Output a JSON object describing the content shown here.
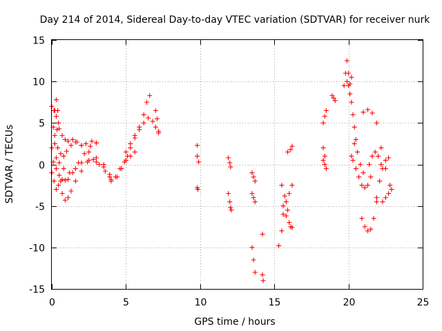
{
  "chart_data": {
    "type": "scatter",
    "title": "Day 214 of 2014, Sidereal Day-to-day VTEC variation (SDTVAR) for receiver nurk",
    "xlabel": "GPS time / hours",
    "ylabel": "SDTVAR / TECUs",
    "xlim": [
      0,
      25
    ],
    "ylim": [
      -15,
      15
    ],
    "xticks": [
      0,
      5,
      10,
      15,
      20,
      25
    ],
    "yticks": [
      -15,
      -10,
      -5,
      0,
      5,
      10,
      15
    ],
    "grid": true,
    "marker": "plus",
    "color": "#ff0000",
    "series": [
      {
        "name": "s01",
        "x": [
          0.0,
          0.15,
          0.3,
          0.45
        ],
        "y": [
          7.0,
          6.5,
          5.8,
          5.0
        ]
      },
      {
        "name": "s02",
        "x": [
          0.1,
          0.2,
          0.3,
          0.4
        ],
        "y": [
          4.5,
          6.5,
          7.8,
          6.5
        ]
      },
      {
        "name": "s03",
        "x": [
          0.2,
          0.35,
          0.5,
          0.7,
          0.9,
          1.1,
          1.4,
          1.7,
          2.0,
          2.3,
          2.7,
          3.0
        ],
        "y": [
          3.5,
          4.2,
          4.3,
          3.5,
          3.0,
          2.8,
          3.0,
          2.7,
          2.3,
          2.5,
          2.8,
          2.6
        ]
      },
      {
        "name": "s04",
        "x": [
          0.0,
          0.2,
          0.4,
          0.6,
          0.8,
          1.0,
          1.3,
          1.6,
          2.0,
          2.5,
          3.0,
          3.5,
          4.0
        ],
        "y": [
          2.0,
          2.5,
          2.0,
          1.3,
          1.0,
          1.6,
          2.3,
          2.7,
          2.3,
          1.5,
          0.8,
          0.0,
          -1.8
        ]
      },
      {
        "name": "s05",
        "x": [
          0.1,
          0.3,
          0.5,
          0.7,
          0.9,
          1.1,
          1.4,
          1.8,
          2.2,
          2.6,
          3.0
        ],
        "y": [
          0.3,
          -0.5,
          -1.3,
          -1.8,
          -1.9,
          -1.8,
          -1.0,
          0.2,
          1.3,
          2.2,
          2.6
        ]
      },
      {
        "name": "s06",
        "x": [
          0.0,
          0.15,
          0.3,
          0.45,
          0.6
        ],
        "y": [
          -1.0,
          -2.0,
          -3.0,
          -2.5,
          -2.0
        ]
      },
      {
        "name": "s07",
        "x": [
          0.7,
          0.9,
          1.1,
          1.3,
          1.6,
          2.0,
          2.4,
          2.8,
          3.2,
          3.6,
          3.9
        ],
        "y": [
          -3.5,
          -4.3,
          -4.0,
          -3.2,
          -2.0,
          -0.8,
          0.3,
          0.6,
          0.0,
          -0.8,
          -1.5
        ]
      },
      {
        "name": "s08",
        "x": [
          0.3,
          0.5,
          0.8,
          1.2,
          1.6,
          2.0,
          2.5,
          3.0,
          3.5,
          3.9
        ],
        "y": [
          0.8,
          0.2,
          -0.5,
          -1.0,
          -0.5,
          0.2,
          0.5,
          0.3,
          -0.3,
          -1.2
        ]
      },
      {
        "name": "s09",
        "x": [
          4.0,
          4.3,
          4.6,
          4.9,
          5.1
        ],
        "y": [
          -2.0,
          -1.5,
          -0.5,
          0.3,
          1.0
        ]
      },
      {
        "name": "s10",
        "x": [
          4.4,
          4.7,
          5.0,
          5.3,
          5.6
        ],
        "y": [
          -1.5,
          -0.5,
          0.5,
          1.0,
          1.5
        ]
      },
      {
        "name": "s11",
        "x": [
          5.0,
          5.3,
          5.6,
          5.9,
          6.2,
          6.4,
          6.6
        ],
        "y": [
          1.5,
          2.5,
          3.5,
          4.5,
          6.0,
          7.5,
          8.3
        ]
      },
      {
        "name": "s12",
        "x": [
          5.0,
          5.3,
          5.6,
          5.9,
          6.2,
          6.5,
          6.8,
          7.0,
          7.2
        ],
        "y": [
          0.5,
          2.0,
          3.2,
          4.2,
          5.0,
          5.6,
          5.2,
          4.5,
          3.8
        ]
      },
      {
        "name": "s13",
        "x": [
          7.0,
          7.1,
          7.2
        ],
        "y": [
          6.5,
          5.5,
          4.0
        ]
      },
      {
        "name": "s14",
        "x": [
          9.8,
          9.8,
          9.9
        ],
        "y": [
          2.3,
          1.0,
          0.3
        ]
      },
      {
        "name": "s15",
        "x": [
          9.8,
          9.85
        ],
        "y": [
          -2.8,
          -3.0
        ]
      },
      {
        "name": "s16",
        "x": [
          11.9,
          12.0,
          12.05
        ],
        "y": [
          0.8,
          0.2,
          -0.3
        ]
      },
      {
        "name": "s17",
        "x": [
          11.9,
          12.0,
          12.05,
          12.1
        ],
        "y": [
          -3.5,
          -4.5,
          -5.2,
          -5.5
        ]
      },
      {
        "name": "s18",
        "x": [
          13.5,
          13.6,
          13.7
        ],
        "y": [
          -1.0,
          -1.5,
          -2.0
        ]
      },
      {
        "name": "s19",
        "x": [
          13.5,
          13.6,
          13.7
        ],
        "y": [
          -3.5,
          -4.0,
          -4.5
        ]
      },
      {
        "name": "s20",
        "x": [
          13.5,
          13.6,
          13.7
        ],
        "y": [
          -10.0,
          -11.5,
          -13.0
        ]
      },
      {
        "name": "s21",
        "x": [
          14.2,
          14.2,
          14.25
        ],
        "y": [
          -8.4,
          -13.3,
          -14.0
        ]
      },
      {
        "name": "s22",
        "x": [
          15.3
        ],
        "y": [
          -9.8
        ]
      },
      {
        "name": "s23",
        "x": [
          15.5,
          15.7,
          15.9,
          16.1
        ],
        "y": [
          -2.5,
          -3.8,
          -5.5,
          -7.5
        ]
      },
      {
        "name": "s24",
        "x": [
          15.5,
          15.6,
          15.8,
          16.0,
          16.2
        ],
        "y": [
          -8.0,
          -6.0,
          -4.5,
          -3.5,
          -2.5
        ]
      },
      {
        "name": "s25",
        "x": [
          15.6,
          15.8,
          16.0,
          16.2
        ],
        "y": [
          -5.0,
          -6.2,
          -7.0,
          -7.6
        ]
      },
      {
        "name": "s26",
        "x": [
          15.9,
          16.1,
          16.2
        ],
        "y": [
          1.5,
          1.8,
          2.2
        ]
      },
      {
        "name": "s27",
        "x": [
          18.3,
          18.4,
          18.5
        ],
        "y": [
          5.0,
          5.8,
          6.5
        ]
      },
      {
        "name": "s28",
        "x": [
          18.3,
          18.4
        ],
        "y": [
          2.0,
          1.0
        ]
      },
      {
        "name": "s29",
        "x": [
          18.3,
          18.4,
          18.5
        ],
        "y": [
          0.5,
          0.0,
          -0.5
        ]
      },
      {
        "name": "s30",
        "x": [
          18.9,
          19.0,
          19.1
        ],
        "y": [
          8.3,
          8.0,
          7.7
        ]
      },
      {
        "name": "s31",
        "x": [
          19.7,
          19.8,
          19.9,
          20.0
        ],
        "y": [
          9.5,
          11.0,
          12.5,
          11.0
        ]
      },
      {
        "name": "s32",
        "x": [
          19.9,
          20.0,
          20.1,
          20.2
        ],
        "y": [
          10.0,
          9.5,
          9.7,
          10.5
        ]
      },
      {
        "name": "s33",
        "x": [
          20.1,
          20.2,
          20.3,
          20.4,
          20.5
        ],
        "y": [
          8.5,
          7.5,
          6.0,
          4.5,
          3.0
        ]
      },
      {
        "name": "s34",
        "x": [
          20.2,
          20.4,
          20.6,
          20.8,
          21.0
        ],
        "y": [
          1.0,
          2.5,
          1.5,
          0.0,
          -1.0
        ]
      },
      {
        "name": "s35",
        "x": [
          20.3,
          20.5,
          20.7,
          20.9,
          21.1,
          21.3,
          21.5
        ],
        "y": [
          0.5,
          -0.5,
          -1.5,
          -2.5,
          -2.8,
          -2.5,
          -1.5
        ]
      },
      {
        "name": "s36",
        "x": [
          20.9,
          21.1,
          21.3,
          21.5,
          21.7,
          21.9
        ],
        "y": [
          -6.5,
          -7.5,
          -8.0,
          -7.8,
          -6.5,
          -4.5
        ]
      },
      {
        "name": "s37",
        "x": [
          21.0,
          21.3,
          21.6,
          21.9,
          22.2,
          22.5,
          22.8
        ],
        "y": [
          6.3,
          6.6,
          6.2,
          5.0,
          2.0,
          -0.5,
          -2.5
        ]
      },
      {
        "name": "s38",
        "x": [
          21.4,
          21.6,
          21.8,
          22.0,
          22.2
        ],
        "y": [
          0.0,
          1.0,
          1.5,
          1.0,
          0.0
        ]
      },
      {
        "name": "s39",
        "x": [
          21.9,
          22.1,
          22.3,
          22.5,
          22.7
        ],
        "y": [
          -4.0,
          -2.0,
          -0.5,
          0.5,
          0.8
        ]
      },
      {
        "name": "s40",
        "x": [
          22.3,
          22.5,
          22.7,
          22.9
        ],
        "y": [
          -4.5,
          -4.0,
          -3.5,
          -3.0
        ]
      }
    ]
  }
}
